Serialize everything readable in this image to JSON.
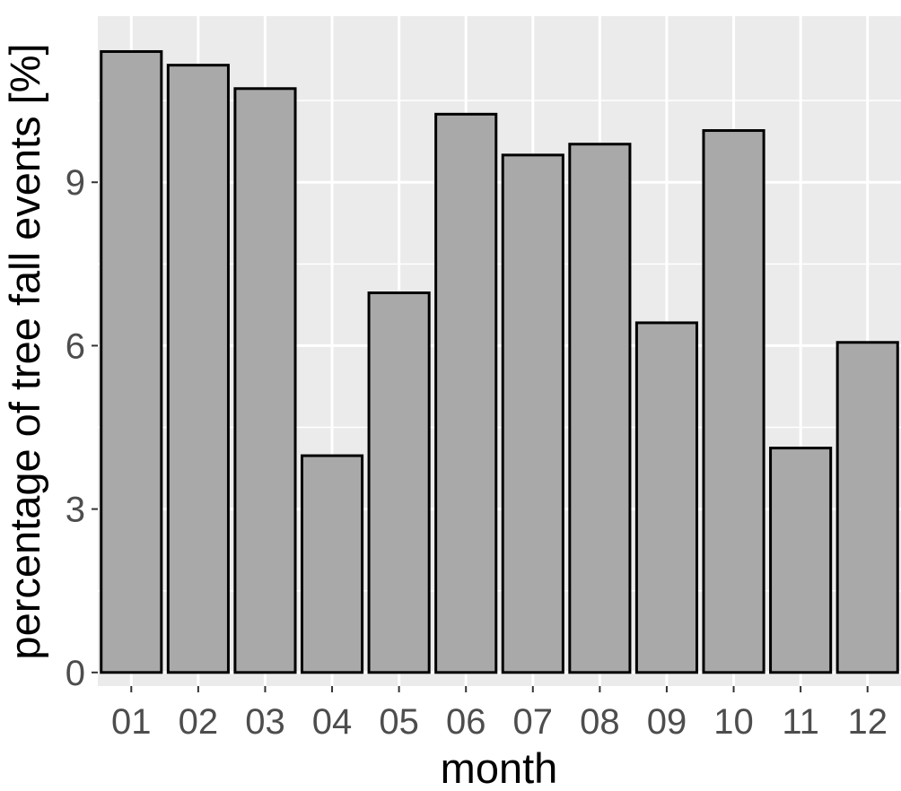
{
  "chart_data": {
    "type": "bar",
    "title": "",
    "xlabel": "month",
    "ylabel": "percentage of tree fall events [%]",
    "categories": [
      "01",
      "02",
      "03",
      "04",
      "05",
      "06",
      "07",
      "08",
      "09",
      "10",
      "11",
      "12"
    ],
    "values": [
      11.4,
      11.15,
      10.72,
      3.98,
      6.97,
      10.25,
      9.5,
      9.7,
      6.42,
      9.95,
      4.12,
      6.06
    ],
    "ylim": [
      -0.25,
      12.05
    ],
    "yticks": [
      "0",
      "3",
      "6",
      "9"
    ],
    "grid": true,
    "legend": "none",
    "colors": {
      "panel": "#ebebeb",
      "grid": "#ffffff",
      "bar_fill": "#a9a9a9",
      "bar_stroke": "#000000",
      "tick_text": "#4d4d4d",
      "axis_title": "#000000"
    }
  }
}
